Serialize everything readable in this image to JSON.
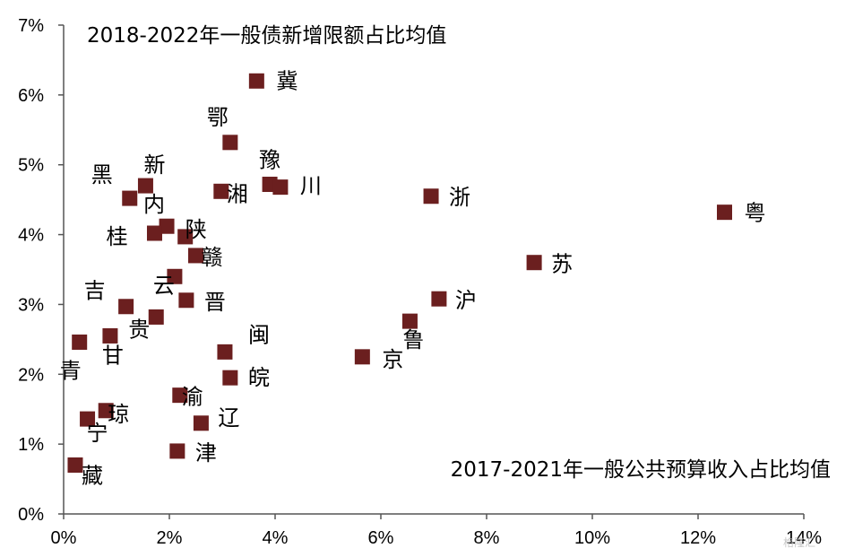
{
  "chart_data": {
    "type": "scatter",
    "xlabel": "2017-2021年一般公共预算收入占比均值",
    "ylabel": "2018-2022年一般债新增限额占比均值",
    "xlim": [
      0,
      14
    ],
    "ylim": [
      0,
      7
    ],
    "x_ticks": [
      "0%",
      "2%",
      "4%",
      "6%",
      "8%",
      "10%",
      "12%",
      "14%"
    ],
    "y_ticks": [
      "0%",
      "1%",
      "2%",
      "3%",
      "4%",
      "5%",
      "6%",
      "7%"
    ],
    "grid": false,
    "marker_color": "#6b1f1f",
    "points": [
      {
        "label": "冀",
        "x": 3.65,
        "y": 6.2
      },
      {
        "label": "鄂",
        "x": 3.15,
        "y": 5.32
      },
      {
        "label": "豫",
        "x": 3.9,
        "y": 4.72
      },
      {
        "label": "川",
        "x": 4.1,
        "y": 4.68
      },
      {
        "label": "湘",
        "x": 2.98,
        "y": 4.62
      },
      {
        "label": "黑",
        "x": 1.25,
        "y": 4.52
      },
      {
        "label": "新",
        "x": 1.55,
        "y": 4.7
      },
      {
        "label": "内",
        "x": 1.95,
        "y": 4.12
      },
      {
        "label": "桂",
        "x": 1.72,
        "y": 4.02
      },
      {
        "label": "陕",
        "x": 2.3,
        "y": 3.97
      },
      {
        "label": "赣",
        "x": 2.5,
        "y": 3.7
      },
      {
        "label": "云",
        "x": 2.1,
        "y": 3.4
      },
      {
        "label": "晋",
        "x": 2.32,
        "y": 3.06
      },
      {
        "label": "吉",
        "x": 1.18,
        "y": 2.97
      },
      {
        "label": "贵",
        "x": 1.75,
        "y": 2.82
      },
      {
        "label": "甘",
        "x": 0.88,
        "y": 2.55
      },
      {
        "label": "青",
        "x": 0.3,
        "y": 2.46
      },
      {
        "label": "闽",
        "x": 3.05,
        "y": 2.32
      },
      {
        "label": "皖",
        "x": 3.15,
        "y": 1.95
      },
      {
        "label": "渝",
        "x": 2.2,
        "y": 1.7
      },
      {
        "label": "琼",
        "x": 0.8,
        "y": 1.48
      },
      {
        "label": "宁",
        "x": 0.45,
        "y": 1.36
      },
      {
        "label": "辽",
        "x": 2.6,
        "y": 1.3
      },
      {
        "label": "津",
        "x": 2.15,
        "y": 0.9
      },
      {
        "label": "藏",
        "x": 0.22,
        "y": 0.7
      },
      {
        "label": "浙",
        "x": 6.95,
        "y": 4.55
      },
      {
        "label": "粤",
        "x": 12.5,
        "y": 4.32
      },
      {
        "label": "苏",
        "x": 8.9,
        "y": 3.6
      },
      {
        "label": "沪",
        "x": 7.1,
        "y": 3.08
      },
      {
        "label": "鲁",
        "x": 6.55,
        "y": 2.76
      },
      {
        "label": "京",
        "x": 5.65,
        "y": 2.25
      }
    ]
  },
  "watermark": "格隆汇"
}
